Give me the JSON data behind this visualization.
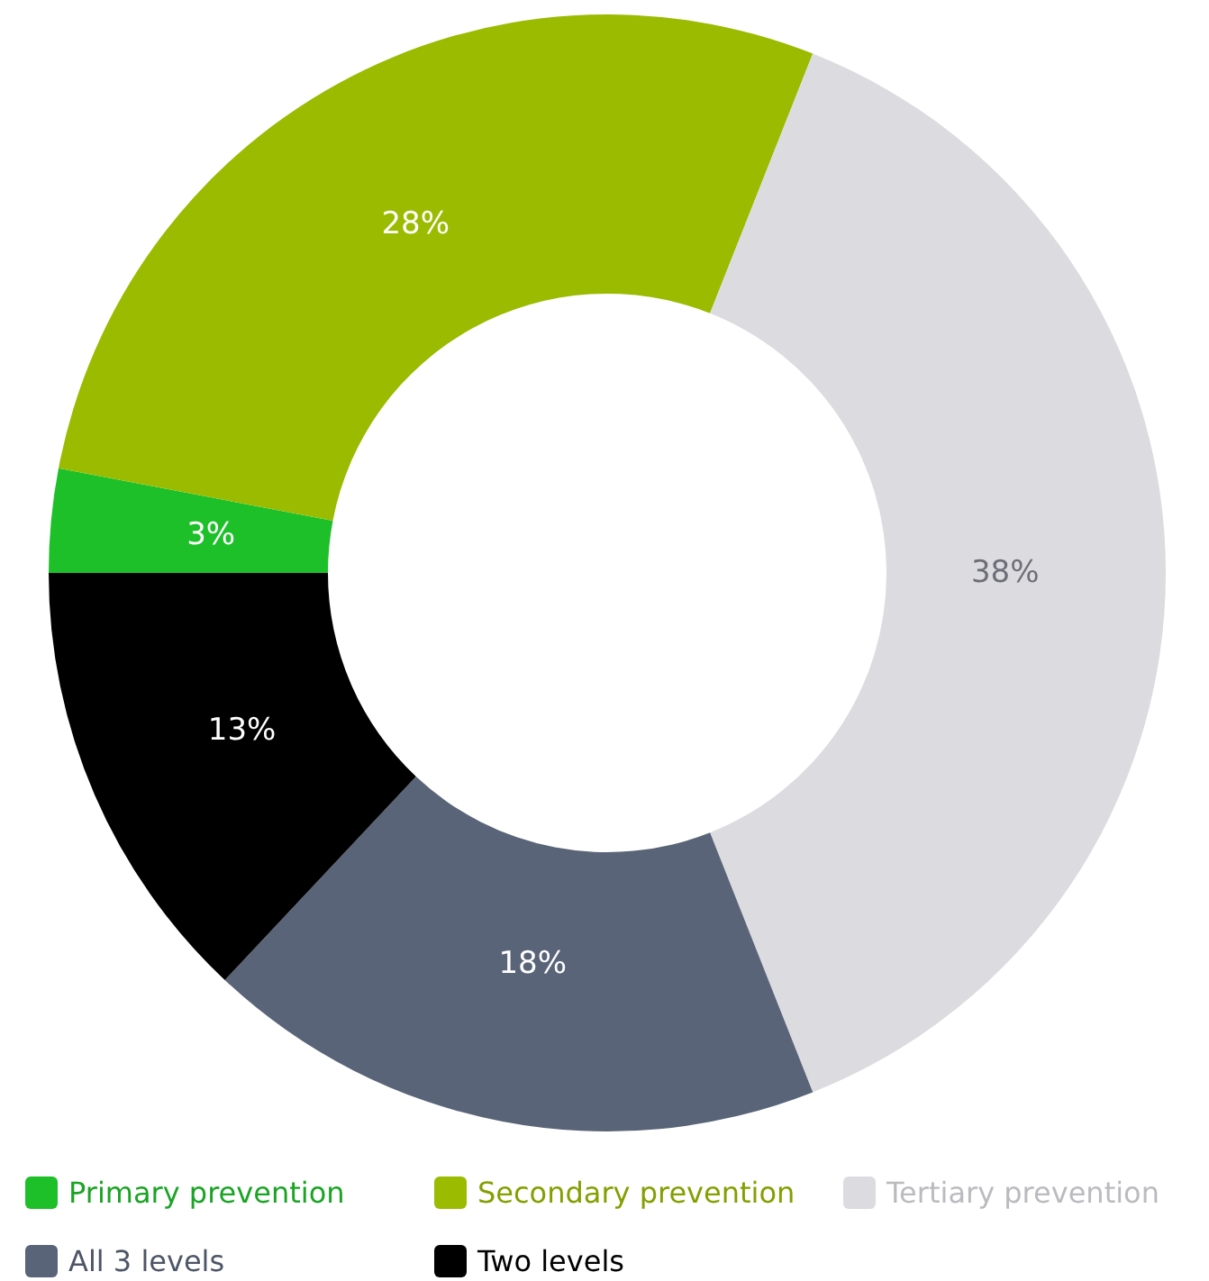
{
  "chart_data": {
    "type": "donut",
    "categories": [
      "Primary prevention",
      "Secondary prevention",
      "Tertiary prevention",
      "All 3 levels",
      "Two levels"
    ],
    "values": [
      3,
      28,
      38,
      18,
      13
    ],
    "colors": [
      "#1ec02a",
      "#9bbb00",
      "#dcdce0",
      "#5a6478",
      "#000000"
    ],
    "value_labels": [
      "3%",
      "28%",
      "38%",
      "18%",
      "13%"
    ],
    "legend": "bottom"
  }
}
